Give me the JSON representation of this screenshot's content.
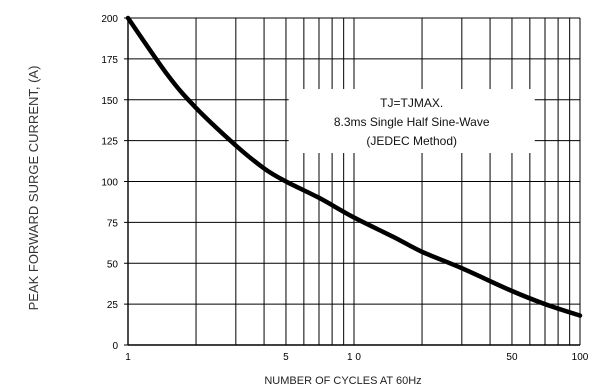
{
  "chart_data": {
    "type": "line",
    "xlabel": "NUMBER OF CYCLES AT 60Hz",
    "ylabel": "PEAK  FORWARD SURGE CURRENT, (A)",
    "xscale": "log",
    "xlim": [
      1,
      100
    ],
    "ylim": [
      0,
      200
    ],
    "x_ticks": [
      1,
      5,
      10,
      50,
      100
    ],
    "x_tick_labels": [
      "1",
      "5",
      "1 0",
      "50",
      "100"
    ],
    "y_ticks": [
      0,
      25,
      50,
      75,
      100,
      125,
      150,
      175,
      200
    ],
    "y_tick_labels": [
      "0",
      "25",
      "50",
      "75",
      "100",
      "125",
      "150",
      "175",
      "200"
    ],
    "grid": true,
    "annotation": [
      "TJ=TJMAX.",
      "8.3ms Single Half Sine-Wave",
      "(JEDEC Method)"
    ],
    "series": [
      {
        "x": [
          1,
          1.5,
          2,
          3,
          4,
          5,
          7,
          10,
          15,
          20,
          30,
          50,
          70,
          100
        ],
        "y": [
          200,
          165,
          145,
          122,
          108,
          100,
          90,
          78,
          66,
          57,
          47,
          33,
          25,
          18
        ]
      }
    ]
  }
}
